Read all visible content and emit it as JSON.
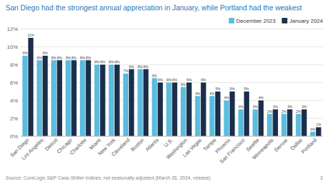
{
  "chart_data": {
    "type": "bar",
    "title": "San Diego had the strongest annual appreciation in January, while Portland had the weakest",
    "categories": [
      "San Diego",
      "Los Angeles",
      "Detroit",
      "Chicago",
      "Charlotte",
      "Miami",
      "New York",
      "Cleveland",
      "Boston",
      "Atlanta",
      "U.S.",
      "Washington",
      "Las Vegas",
      "Tampa",
      "Phoenix",
      "San Francisco",
      "Seattle",
      "Minneapolis",
      "Denver",
      "Dallas",
      "Portland"
    ],
    "series": [
      {
        "name": "December 2023",
        "color": "#5bbcde",
        "values": [
          9,
          8.5,
          8.5,
          8.5,
          8.5,
          8,
          8,
          7,
          7.5,
          6.5,
          6,
          5.5,
          4.5,
          4.5,
          4,
          3,
          3,
          2.5,
          2.5,
          2.5,
          0.5
        ],
        "value_labels": [
          "9%",
          "8%",
          "8%",
          "8%",
          "8%",
          "8%",
          "8%",
          "7%",
          "8%",
          "6%",
          "6%",
          "6%",
          "4%",
          "4%",
          "4%",
          "3%",
          "3%",
          "2%",
          "2%",
          "2%",
          "0%"
        ]
      },
      {
        "name": "January 2024",
        "color": "#1b2e4b",
        "values": [
          11,
          9,
          8.5,
          8.5,
          8.5,
          8,
          8,
          7.5,
          7.5,
          6,
          6,
          6,
          6,
          5,
          5,
          5,
          4,
          3,
          3,
          3,
          1
        ],
        "value_labels": [
          "11%",
          "9%",
          "8%",
          "8%",
          "8%",
          "8%",
          "8%",
          "8%",
          "8%",
          "6%",
          "6%",
          "6%",
          "6%",
          "5%",
          "5%",
          "5%",
          "4%",
          "3%",
          "3%",
          "3%",
          "1%"
        ]
      }
    ],
    "ylim": [
      0,
      12
    ],
    "yticks": [
      {
        "value": 0,
        "label": "0%"
      },
      {
        "value": 2,
        "label": "2%"
      },
      {
        "value": 4,
        "label": "4%"
      },
      {
        "value": 6,
        "label": "6%"
      },
      {
        "value": 8,
        "label": "8%"
      },
      {
        "value": 10,
        "label": "10%"
      },
      {
        "value": 12,
        "label": "12%"
      }
    ],
    "grid": true,
    "legend": "upper right",
    "data_labels": true,
    "annotations": [
      "Source: CoreLogic S&P Case-Shiller Indices, not seasonally adjusted (March 26, 2024, release)",
      "3"
    ]
  }
}
